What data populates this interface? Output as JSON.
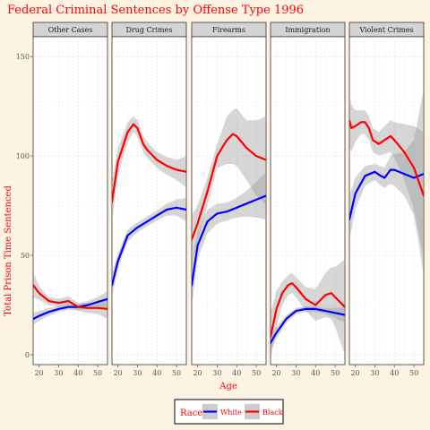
{
  "chart_data": {
    "type": "line",
    "title": "Federal Criminal Sentences by Offense Type 1996",
    "xlabel": "Age",
    "ylabel": "Total Prison Time Sentenced",
    "xlim": [
      17,
      55
    ],
    "ylim": [
      -5,
      160
    ],
    "x_ticks": [
      20,
      30,
      40,
      50
    ],
    "y_ticks": [
      0,
      50,
      100,
      150
    ],
    "grid": true,
    "legend_position": "bottom",
    "legend_title": "Race",
    "colors": {
      "White": "#0000ff",
      "Black": "#ff0000",
      "ribbon": "#999999",
      "title": "#ff0000"
    },
    "panels": [
      {
        "name": "Other Cases",
        "series": [
          {
            "name": "White",
            "x": [
              17,
              20,
              25,
              30,
              35,
              40,
              45,
              50,
              55
            ],
            "y": [
              18,
              19.5,
              21.5,
              23,
              24,
              24,
              25,
              26.5,
              28
            ],
            "lower": [
              15,
              17,
              19.5,
              21.5,
              22.5,
              22.5,
              23,
              24,
              24
            ],
            "upper": [
              21,
              22,
              23.5,
              24.5,
              25.5,
              25.5,
              27,
              29,
              32
            ]
          },
          {
            "name": "Black",
            "x": [
              17,
              20,
              25,
              30,
              35,
              40,
              45,
              50,
              55
            ],
            "y": [
              35,
              31,
              27,
              26,
              27,
              24,
              23.5,
              23.5,
              23
            ],
            "lower": [
              29,
              27.5,
              25,
              24,
              24.5,
              22,
              21,
              20.5,
              18
            ],
            "upper": [
              42,
              34.5,
              29,
              28,
              29.5,
              26,
              26,
              26.5,
              28
            ]
          }
        ]
      },
      {
        "name": "Drug Crimes",
        "series": [
          {
            "name": "White",
            "x": [
              17,
              20,
              25,
              30,
              35,
              40,
              45,
              50,
              55
            ],
            "y": [
              35,
              47,
              60,
              64,
              67,
              70,
              73,
              74,
              73
            ],
            "lower": [
              29,
              43,
              57,
              61.5,
              64.5,
              67.5,
              70,
              70,
              67
            ],
            "upper": [
              41,
              51,
              63,
              66.5,
              69.5,
              72.5,
              76,
              78,
              79
            ]
          },
          {
            "name": "Black",
            "x": [
              17,
              20,
              25,
              28,
              30,
              33,
              35,
              40,
              45,
              50,
              55
            ],
            "y": [
              77,
              97,
              112,
              116,
              114,
              106,
              103,
              98,
              95,
              93,
              92
            ],
            "lower": [
              67,
              90,
              107,
              112,
              110,
              102,
              99,
              94,
              90.5,
              88,
              84
            ],
            "upper": [
              87,
              104,
              117,
              120,
              118,
              110,
              107,
              102,
              99.5,
              98,
              100
            ]
          }
        ]
      },
      {
        "name": "Firearms",
        "series": [
          {
            "name": "White",
            "x": [
              17,
              20,
              25,
              30,
              35,
              40,
              45,
              50,
              55
            ],
            "y": [
              35,
              55,
              67,
              71,
              72,
              74,
              76,
              78,
              80
            ],
            "lower": [
              24,
              48,
              61,
              66,
              67.5,
              69,
              69.5,
              69,
              68
            ],
            "upper": [
              46,
              62,
              73,
              76,
              76.5,
              79,
              82.5,
              87,
              92
            ]
          },
          {
            "name": "Black",
            "x": [
              17,
              20,
              25,
              30,
              35,
              38,
              40,
              45,
              50,
              55
            ],
            "y": [
              58,
              66,
              82,
              100,
              108,
              111,
              110,
              104,
              100,
              98
            ],
            "lower": [
              46,
              57,
              75,
              94,
              96,
              96,
              95,
              88,
              80,
              75
            ],
            "upper": [
              70,
              75,
              89,
              106,
              120,
              123,
              124,
              118,
              118,
              120
            ]
          }
        ]
      },
      {
        "name": "Immigration",
        "series": [
          {
            "name": "White",
            "x": [
              17,
              20,
              25,
              30,
              35,
              40,
              45,
              50,
              55
            ],
            "y": [
              6,
              11,
              18,
              22,
              23,
              23,
              22,
              21,
              20
            ],
            "lower": [
              2,
              8,
              16,
              20.5,
              21.5,
              21.5,
              20.5,
              18.5,
              16
            ],
            "upper": [
              10,
              14,
              20,
              23.5,
              24.5,
              24.5,
              23.5,
              23.5,
              24
            ]
          },
          {
            "name": "Black",
            "x": [
              17,
              20,
              23,
              26,
              28,
              30,
              35,
              40,
              45,
              48,
              50,
              55
            ],
            "y": [
              9,
              23,
              31,
              35,
              36,
              34,
              28,
              25,
              30,
              31,
              29,
              24
            ],
            "lower": [
              -3,
              14,
              25,
              30,
              31,
              29,
              22,
              17,
              19,
              18,
              14,
              0
            ],
            "upper": [
              21,
              32,
              37,
              40,
              41,
              39,
              34,
              33,
              41,
              44,
              44,
              48
            ]
          }
        ]
      },
      {
        "name": "Violent Crimes",
        "series": [
          {
            "name": "White",
            "x": [
              17,
              20,
              25,
              30,
              33,
              35,
              38,
              40,
              45,
              50,
              55
            ],
            "y": [
              68,
              81,
              90,
              92,
              90,
              89,
              93,
              93,
              91,
              89,
              91
            ],
            "lower": [
              57,
              73,
              85,
              88,
              85,
              84,
              86,
              85,
              80,
              70,
              40
            ],
            "upper": [
              80,
              89,
              95,
              96,
              95,
              94,
              100,
              101,
              102,
              108,
              134
            ]
          },
          {
            "name": "Black",
            "x": [
              17,
              18,
              20,
              23,
              25,
              27,
              29,
              32,
              35,
              38,
              40,
              45,
              50,
              55
            ],
            "y": [
              118,
              114,
              115,
              117,
              117,
              114,
              108,
              106,
              108,
              110,
              108,
              102,
              94,
              80
            ],
            "lower": [
              105,
              102,
              107,
              111,
              111,
              108,
              102,
              100,
              101,
              102,
              99,
              88,
              73,
              48
            ],
            "upper": [
              131,
              126,
              123,
              123,
              123,
              120,
              114,
              112,
              115,
              118,
              117,
              116,
              115,
              112
            ]
          }
        ]
      }
    ]
  }
}
